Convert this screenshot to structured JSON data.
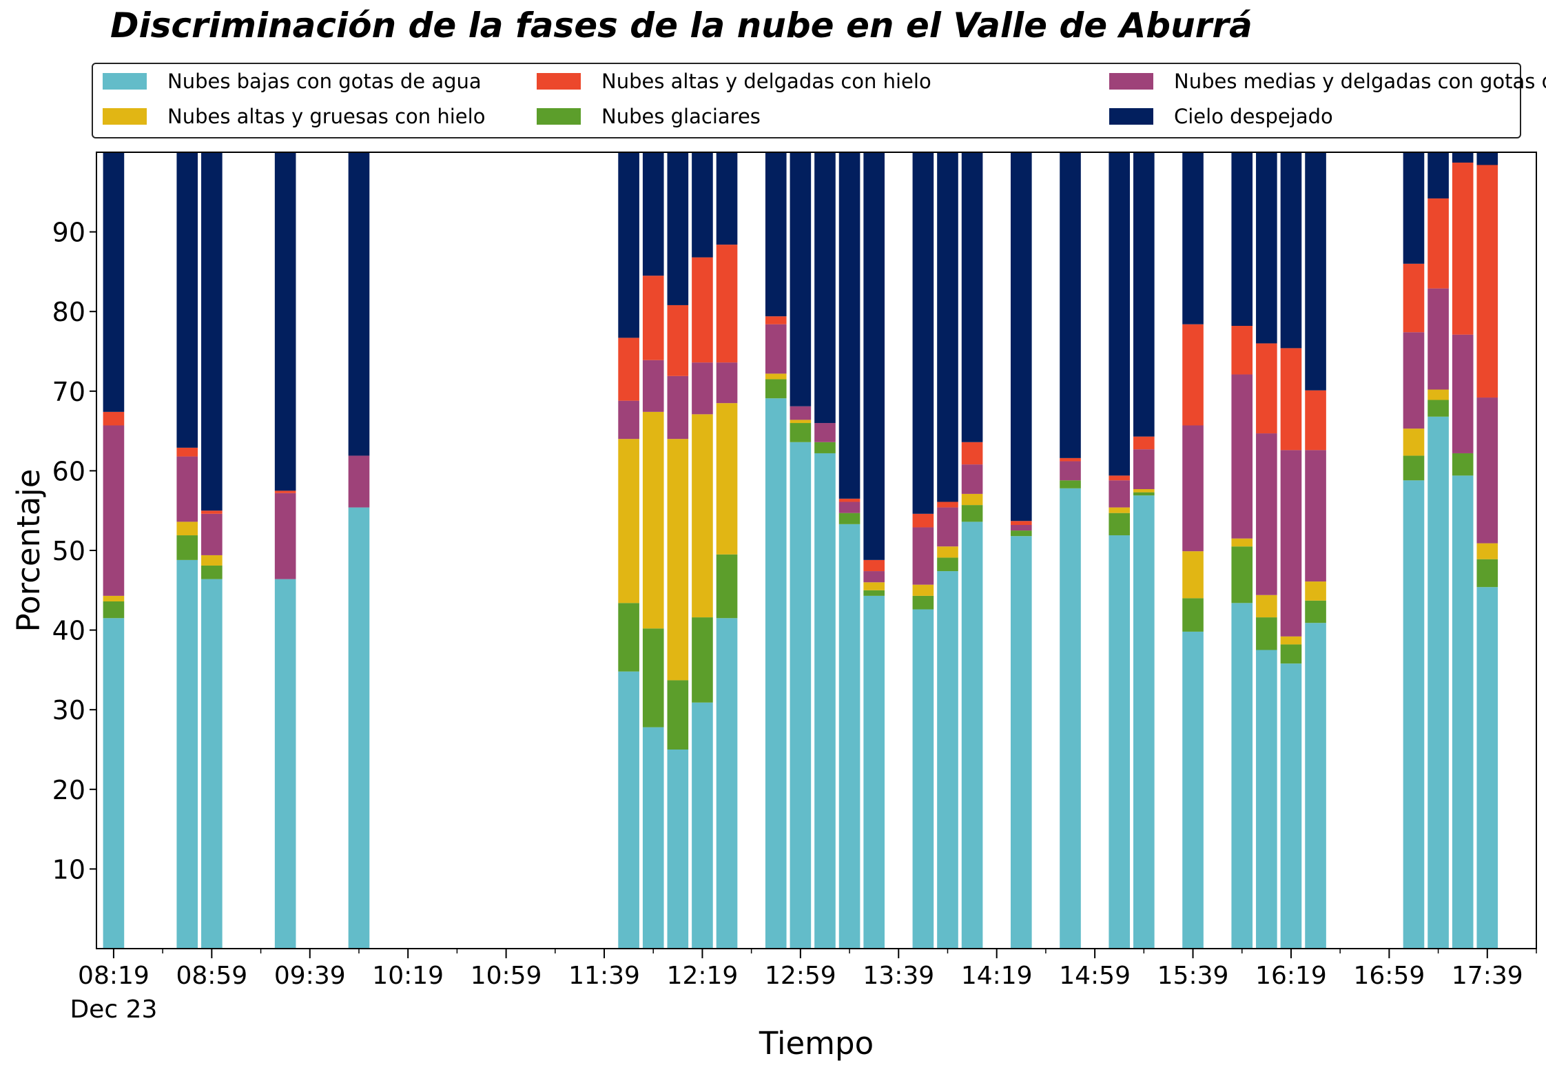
{
  "chart_data": {
    "type": "bar",
    "stacked": true,
    "title": "Discriminación de la fases de la nube en el Valle de Aburrá",
    "xlabel": "Tiempo",
    "ylabel": "Porcentaje",
    "ylim": [
      0,
      100
    ],
    "yticks": [
      10,
      20,
      30,
      40,
      50,
      60,
      70,
      80,
      90
    ],
    "xlim": [
      "08:12",
      "17:59"
    ],
    "major_ticks": [
      {
        "time": "08:19",
        "label": "08:19",
        "sublabel": "Dec 23"
      },
      {
        "time": "08:59",
        "label": "08:59",
        "sublabel": ""
      },
      {
        "time": "09:39",
        "label": "09:39",
        "sublabel": ""
      },
      {
        "time": "10:19",
        "label": "10:19",
        "sublabel": ""
      },
      {
        "time": "10:59",
        "label": "10:59",
        "sublabel": ""
      },
      {
        "time": "11:39",
        "label": "11:39",
        "sublabel": ""
      },
      {
        "time": "12:19",
        "label": "12:19",
        "sublabel": ""
      },
      {
        "time": "12:59",
        "label": "12:59",
        "sublabel": ""
      },
      {
        "time": "13:39",
        "label": "13:39",
        "sublabel": ""
      },
      {
        "time": "14:19",
        "label": "14:19",
        "sublabel": ""
      },
      {
        "time": "14:59",
        "label": "14:59",
        "sublabel": ""
      },
      {
        "time": "15:39",
        "label": "15:39",
        "sublabel": ""
      },
      {
        "time": "16:19",
        "label": "16:19",
        "sublabel": ""
      },
      {
        "time": "16:59",
        "label": "16:59",
        "sublabel": ""
      },
      {
        "time": "17:39",
        "label": "17:39",
        "sublabel": ""
      }
    ],
    "minor_ticks": [
      "08:39",
      "09:19",
      "09:59",
      "10:39",
      "11:19",
      "11:59",
      "12:39",
      "13:19",
      "13:59",
      "14:39",
      "15:19",
      "15:59",
      "16:39",
      "17:19",
      "17:59"
    ],
    "legend": {
      "placement": "top",
      "columns": 3
    },
    "series": [
      {
        "name": "Nubes bajas con gotas de agua",
        "color": "#63bcc9"
      },
      {
        "name": "Nubes glaciares",
        "color": "#5c9e2b"
      },
      {
        "name": "Nubes altas y gruesas con hielo",
        "color": "#e1b614"
      },
      {
        "name": "Nubes medias y delgadas con gotas de agua",
        "color": "#9e4279"
      },
      {
        "name": "Nubes altas y delgadas con hielo",
        "color": "#ec482c"
      },
      {
        "name": "Cielo despejado",
        "color": "#021f5e"
      }
    ],
    "legend_order": [
      0,
      2,
      4,
      1,
      3,
      5
    ],
    "bars": [
      {
        "time": "08:19",
        "values": [
          41.5,
          2.1,
          0.7,
          21.4,
          1.7,
          32.6
        ]
      },
      {
        "time": "08:49",
        "values": [
          48.8,
          3.1,
          1.7,
          8.2,
          1.1,
          37.1
        ]
      },
      {
        "time": "08:59",
        "values": [
          46.4,
          1.7,
          1.3,
          5.2,
          0.4,
          45.0
        ]
      },
      {
        "time": "09:29",
        "values": [
          46.4,
          0.0,
          0.0,
          10.8,
          0.3,
          42.5
        ]
      },
      {
        "time": "09:59",
        "values": [
          55.4,
          0.0,
          0.0,
          6.5,
          0.0,
          38.1
        ]
      },
      {
        "time": "11:49",
        "values": [
          34.8,
          8.6,
          20.6,
          4.8,
          7.9,
          23.3
        ]
      },
      {
        "time": "11:59",
        "values": [
          27.8,
          12.4,
          27.2,
          6.5,
          10.6,
          15.5
        ]
      },
      {
        "time": "12:09",
        "values": [
          25.0,
          8.7,
          30.3,
          7.9,
          8.9,
          19.2
        ]
      },
      {
        "time": "12:19",
        "values": [
          30.9,
          10.7,
          25.5,
          6.5,
          13.2,
          13.2
        ]
      },
      {
        "time": "12:29",
        "values": [
          41.5,
          8.0,
          19.0,
          5.1,
          14.8,
          11.6
        ]
      },
      {
        "time": "12:49",
        "values": [
          69.1,
          2.4,
          0.7,
          6.2,
          1.0,
          20.6
        ]
      },
      {
        "time": "12:59",
        "values": [
          63.6,
          2.4,
          0.4,
          1.7,
          0.0,
          31.9
        ]
      },
      {
        "time": "13:09",
        "values": [
          62.2,
          1.4,
          0.0,
          2.4,
          0.0,
          34.0
        ]
      },
      {
        "time": "13:19",
        "values": [
          53.3,
          1.4,
          0.0,
          1.4,
          0.4,
          43.5
        ]
      },
      {
        "time": "13:29",
        "values": [
          44.3,
          0.7,
          1.0,
          1.4,
          1.4,
          51.2
        ]
      },
      {
        "time": "13:49",
        "values": [
          42.6,
          1.7,
          1.4,
          7.2,
          1.7,
          45.4
        ]
      },
      {
        "time": "13:59",
        "values": [
          47.4,
          1.7,
          1.4,
          4.9,
          0.7,
          43.9
        ]
      },
      {
        "time": "14:09",
        "values": [
          53.6,
          2.1,
          1.4,
          3.7,
          2.8,
          36.4
        ]
      },
      {
        "time": "14:29",
        "values": [
          51.8,
          0.7,
          0.0,
          0.7,
          0.5,
          46.3
        ]
      },
      {
        "time": "14:49",
        "values": [
          57.8,
          1.0,
          0.0,
          2.4,
          0.4,
          38.4
        ]
      },
      {
        "time": "15:09",
        "values": [
          51.9,
          2.8,
          0.7,
          3.4,
          0.6,
          40.6
        ]
      },
      {
        "time": "15:19",
        "values": [
          56.9,
          0.4,
          0.4,
          5.0,
          1.6,
          35.7
        ]
      },
      {
        "time": "15:39",
        "values": [
          39.8,
          4.2,
          5.9,
          15.8,
          12.7,
          21.6
        ]
      },
      {
        "time": "15:59",
        "values": [
          43.4,
          7.1,
          1.0,
          20.6,
          6.1,
          21.8
        ]
      },
      {
        "time": "16:09",
        "values": [
          37.5,
          4.1,
          2.8,
          20.3,
          11.3,
          24.0
        ]
      },
      {
        "time": "16:19",
        "values": [
          35.8,
          2.4,
          1.0,
          23.4,
          12.8,
          24.6
        ]
      },
      {
        "time": "16:29",
        "values": [
          40.9,
          2.8,
          2.4,
          16.5,
          7.5,
          29.9
        ]
      },
      {
        "time": "17:09",
        "values": [
          58.8,
          3.1,
          3.4,
          12.1,
          8.6,
          14.0
        ]
      },
      {
        "time": "17:19",
        "values": [
          66.8,
          2.1,
          1.3,
          12.7,
          11.3,
          5.8
        ]
      },
      {
        "time": "17:29",
        "values": [
          59.4,
          2.8,
          0.0,
          14.9,
          21.6,
          1.3
        ]
      },
      {
        "time": "17:39",
        "values": [
          45.4,
          3.5,
          2.0,
          18.3,
          29.2,
          1.6
        ]
      }
    ]
  }
}
